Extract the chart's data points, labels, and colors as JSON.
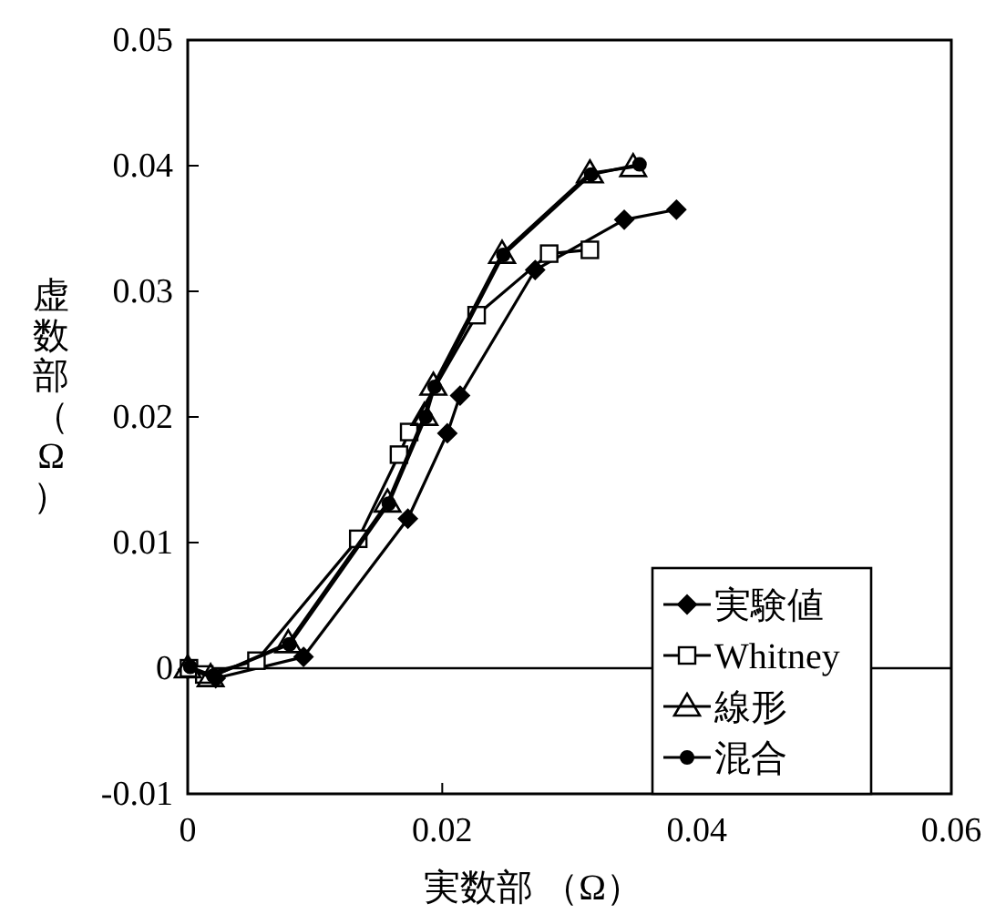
{
  "chart_data": {
    "type": "line",
    "xlabel": "実数部 （Ω）",
    "ylabel": "虚数部（Ω）",
    "xlim": [
      0,
      0.06
    ],
    "xticks": [
      0,
      0.02,
      0.04,
      0.06
    ],
    "ylim": [
      -0.01,
      0.05
    ],
    "yticks": [
      -0.01,
      0,
      0.01,
      0.02,
      0.03,
      0.04,
      0.05
    ],
    "grid": false,
    "legend": "bottom right",
    "ref_lines": [
      {
        "axis": "y",
        "value": 0,
        "color": "#000000",
        "line_style": "solid"
      }
    ],
    "series": [
      {
        "name": "実験値",
        "color": "#000000",
        "marker": "diamond",
        "x": [
          0,
          0.0022,
          0.0091,
          0.0173,
          0.0204,
          0.0214,
          0.0273,
          0.0343,
          0.0384
        ],
        "values": [
          -0.0001,
          -0.0008,
          0.0009,
          0.0119,
          0.0187,
          0.0217,
          0.0317,
          0.0357,
          0.0365
        ]
      },
      {
        "name": "Whitney",
        "color": "#000000",
        "marker": "square",
        "x": [
          0.0001,
          0.0013,
          0.0054,
          0.0134,
          0.0166,
          0.0174,
          0.0227,
          0.0284,
          0.0316
        ],
        "values": [
          0,
          -0.0005,
          0.0006,
          0.0103,
          0.017,
          0.0188,
          0.0281,
          0.033,
          0.0333
        ]
      },
      {
        "name": "線形",
        "color": "#000000",
        "marker": "triangle",
        "x": [
          0,
          0.0018,
          0.0079,
          0.0157,
          0.0186,
          0.0193,
          0.0247,
          0.0316,
          0.035
        ],
        "values": [
          0,
          -0.0007,
          0.002,
          0.0132,
          0.0201,
          0.0225,
          0.033,
          0.0394,
          0.0399
        ]
      },
      {
        "name": "混合",
        "color": "#000000",
        "marker": "circle",
        "x": [
          0.0002,
          0.002,
          0.008,
          0.0158,
          0.0187,
          0.0194,
          0.0248,
          0.0317,
          0.0355
        ],
        "values": [
          0.0001,
          -0.0006,
          0.0019,
          0.0131,
          0.02,
          0.0224,
          0.0329,
          0.0393,
          0.0401
        ]
      }
    ]
  }
}
